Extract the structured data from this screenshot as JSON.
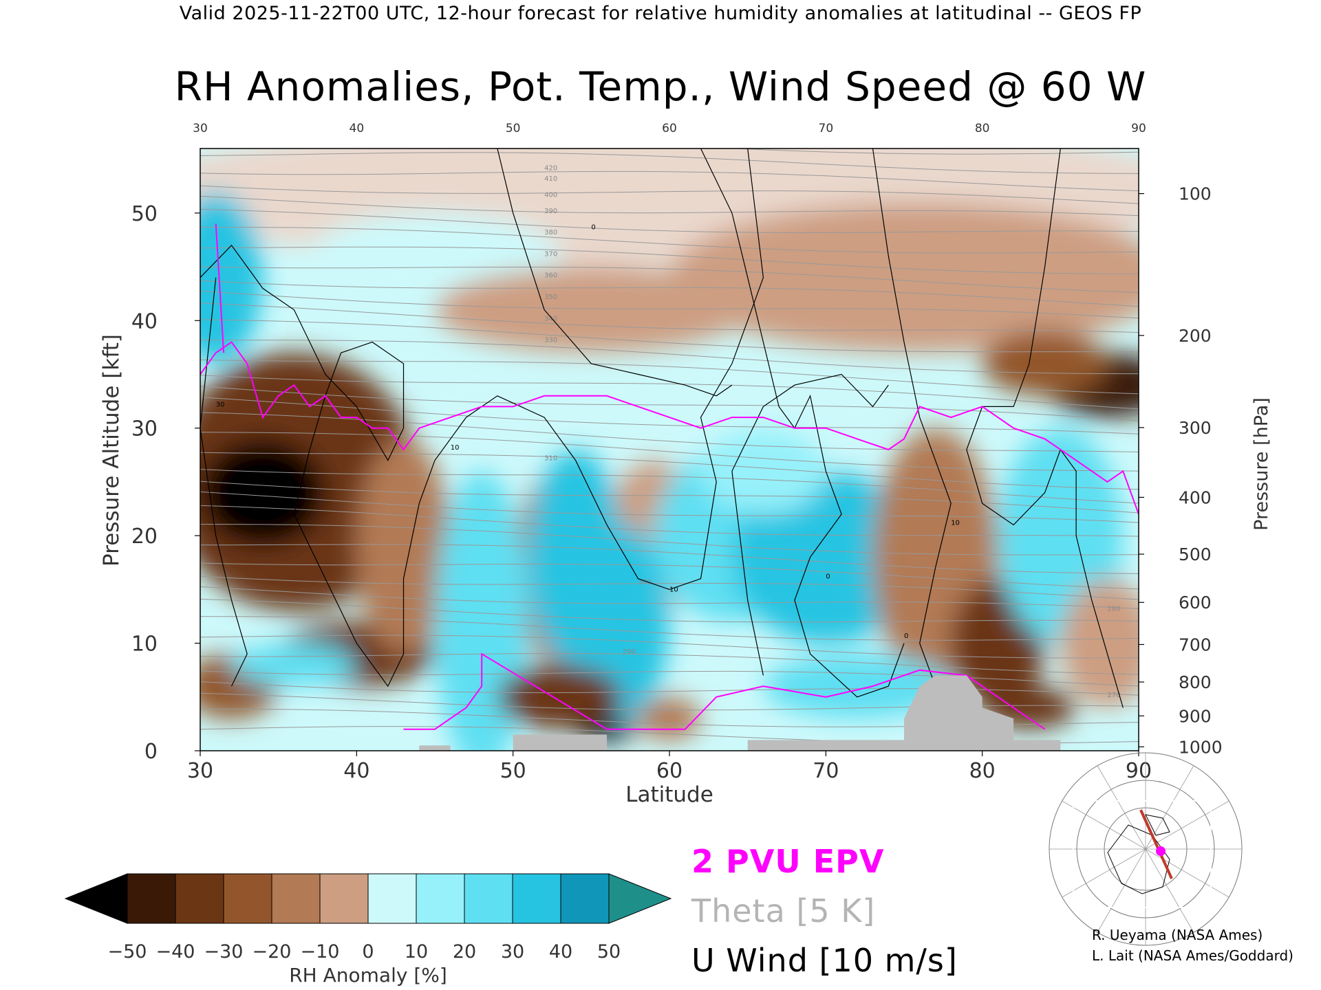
{
  "header": {
    "subtitle": "Valid 2025-11-22T00 UTC, 12-hour forecast for relative humidity anomalies at latitudinal -- GEOS FP"
  },
  "title": "RH Anomalies, Pot. Temp., Wind Speed @ 60 W",
  "chart_data": {
    "type": "heatmap",
    "xlabel": "Latitude",
    "ylabel": "Pressure Altitude [kft]",
    "ylabel_right": "Pressure [hPa]",
    "xlim": [
      30,
      90
    ],
    "ylim": [
      0,
      56
    ],
    "x_ticks": [
      "30",
      "40",
      "50",
      "60",
      "70",
      "80",
      "90"
    ],
    "y_ticks": [
      "0",
      "10",
      "20",
      "30",
      "40",
      "50"
    ],
    "pressure_ticks": [
      "100",
      "200",
      "300",
      "400",
      "500",
      "600",
      "700",
      "800",
      "900",
      "1000"
    ],
    "theta_labels": [
      "420",
      "410",
      "400",
      "390",
      "380",
      "370",
      "360",
      "350",
      "340",
      "330",
      "310",
      "300",
      "290",
      "280",
      "270"
    ],
    "wind_labels": [
      "0",
      "10",
      "30"
    ],
    "colorbar": {
      "label": "RH Anomaly [%]",
      "ticks": [
        "−50",
        "−40",
        "−30",
        "−20",
        "−10",
        "0",
        "10",
        "20",
        "30",
        "40",
        "50"
      ],
      "colors": [
        "#3a1a07",
        "#6b3613",
        "#93562c",
        "#b27a55",
        "#cd9e82",
        "#ead8cd",
        "#cdf9fb",
        "#96f1fa",
        "#5fdff2",
        "#27c4e2",
        "#1096b9"
      ],
      "under_color": "#000000",
      "over_color": "#1f8f8a"
    },
    "epv_contour": {
      "name": "2 PVU EPV",
      "color": "#ff00ff",
      "points": [
        [
          30,
          35
        ],
        [
          31,
          37
        ],
        [
          32,
          38
        ],
        [
          33,
          36
        ],
        [
          34,
          31
        ],
        [
          35,
          33
        ],
        [
          36,
          34
        ],
        [
          37,
          32
        ],
        [
          38,
          33
        ],
        [
          39,
          31
        ],
        [
          40,
          31
        ],
        [
          41,
          30
        ],
        [
          42,
          30
        ],
        [
          43,
          28
        ],
        [
          44,
          30
        ],
        [
          46,
          31
        ],
        [
          48,
          32
        ],
        [
          50,
          32
        ],
        [
          52,
          33
        ],
        [
          54,
          33
        ],
        [
          56,
          33
        ],
        [
          58,
          32
        ],
        [
          60,
          31
        ],
        [
          62,
          30
        ],
        [
          64,
          31
        ],
        [
          66,
          31
        ],
        [
          68,
          30
        ],
        [
          70,
          30
        ],
        [
          72,
          29
        ],
        [
          74,
          28
        ],
        [
          75,
          29
        ],
        [
          76,
          32
        ],
        [
          78,
          31
        ],
        [
          80,
          32
        ],
        [
          82,
          30
        ],
        [
          84,
          29
        ],
        [
          86,
          27
        ],
        [
          88,
          25
        ],
        [
          89,
          26
        ],
        [
          90,
          22
        ]
      ]
    },
    "orography": [
      [
        44,
        0
      ],
      [
        44,
        0.5
      ],
      [
        46,
        0.5
      ],
      [
        46,
        0
      ],
      [
        50,
        0
      ],
      [
        50,
        1.5
      ],
      [
        56,
        1.5
      ],
      [
        56,
        0
      ],
      [
        65,
        0
      ],
      [
        65,
        1
      ],
      [
        75,
        1
      ],
      [
        75,
        3
      ],
      [
        76,
        6
      ],
      [
        77,
        7
      ],
      [
        79,
        7
      ],
      [
        80,
        5
      ],
      [
        80,
        4
      ],
      [
        82,
        3
      ],
      [
        82,
        1
      ],
      [
        85,
        1
      ],
      [
        85,
        0
      ]
    ]
  },
  "legend": {
    "epv": "2 PVU EPV",
    "theta": "Theta [5 K]",
    "wind": "U Wind [10 m/s]",
    "epv_color": "#ff00ff",
    "theta_color": "#b4b4b4",
    "wind_color": "#000000"
  },
  "credits": {
    "line1": "R. Ueyama (NASA Ames)",
    "line2": "L. Lait (NASA Ames/Goddard)"
  }
}
